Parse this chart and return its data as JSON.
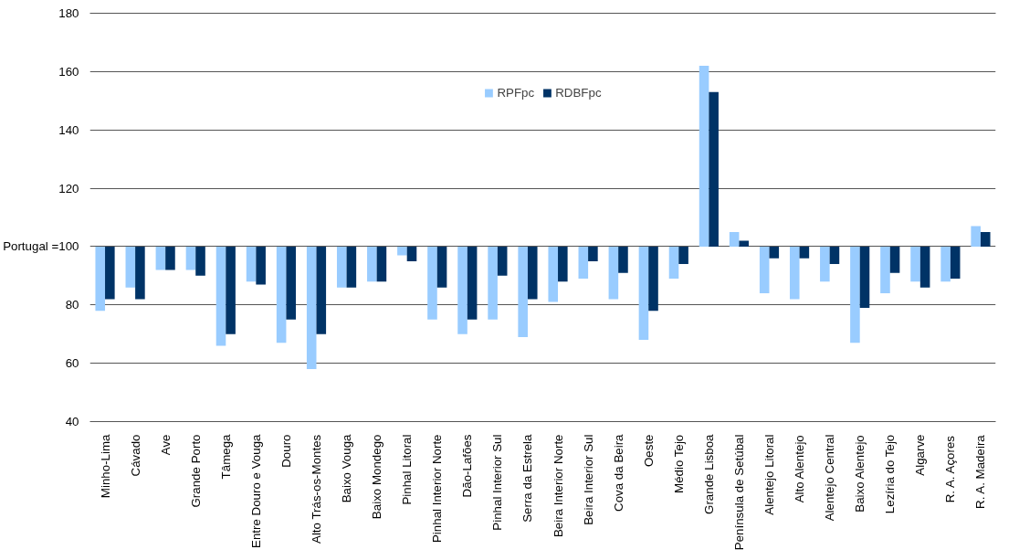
{
  "chart_data": {
    "type": "bar",
    "categories": [
      "Minho-Lima",
      "Cávado",
      "Ave",
      "Grande Porto",
      "Tâmega",
      "Entre Douro e Vouga",
      "Douro",
      "Alto Trás-os-Montes",
      "Baixo Vouga",
      "Baixo Mondego",
      "Pinhal Litoral",
      "Pinhal Interior Norte",
      "Dão-Lafões",
      "Pinhal Interior Sul",
      "Serra da Estrela",
      "Beira Interior Norte",
      "Beira Interior Sul",
      "Cova da Beira",
      "Oeste",
      "Médio Tejo",
      "Grande Lisboa",
      "Península de Setúbal",
      "Alentejo Litoral",
      "Alto Alentejo",
      "Alentejo Central",
      "Baixo Alentejo",
      "Lezíria do Tejo",
      "Algarve",
      "R. A. Açores",
      "R. A. Madeira"
    ],
    "series": [
      {
        "name": "RPFpc",
        "color": "#99ccff",
        "base": [
          100,
          100,
          100,
          100,
          100,
          100,
          100,
          100,
          100,
          100,
          100,
          100,
          100,
          100,
          100,
          100,
          100,
          100,
          100,
          100,
          100,
          100,
          100,
          100,
          100,
          100,
          100,
          100,
          100,
          100
        ],
        "values": [
          -22,
          -14,
          -8,
          -8,
          -34,
          -12,
          -33,
          -42,
          -14,
          -12,
          -3,
          -25,
          -30,
          -25,
          -31,
          -19,
          -11,
          -18,
          -32,
          -11,
          62,
          5,
          -16,
          -18,
          -12,
          -33,
          -16,
          -12,
          -12,
          7
        ]
      },
      {
        "name": "RDBFpc",
        "color": "#003366",
        "base": [
          100,
          100,
          100,
          100,
          100,
          100,
          100,
          100,
          100,
          100,
          100,
          100,
          100,
          100,
          100,
          100,
          100,
          100,
          100,
          100,
          100,
          100,
          100,
          100,
          100,
          100,
          100,
          100,
          100,
          100
        ],
        "values": [
          -18,
          -18,
          -8,
          -10,
          -30,
          -13,
          -25,
          -30,
          -14,
          -12,
          -5,
          -14,
          -25,
          -10,
          -18,
          -12,
          -5,
          -9,
          -22,
          -6,
          53,
          2,
          -4,
          -4,
          -6,
          -21,
          -9,
          -14,
          -11,
          5
        ]
      }
    ],
    "ylim": [
      40,
      180
    ],
    "yticks": [
      40,
      60,
      80,
      {
        "value": 100,
        "label": "Portugal =100"
      },
      120,
      140,
      160,
      180
    ],
    "grid": "y",
    "legend": "top"
  }
}
